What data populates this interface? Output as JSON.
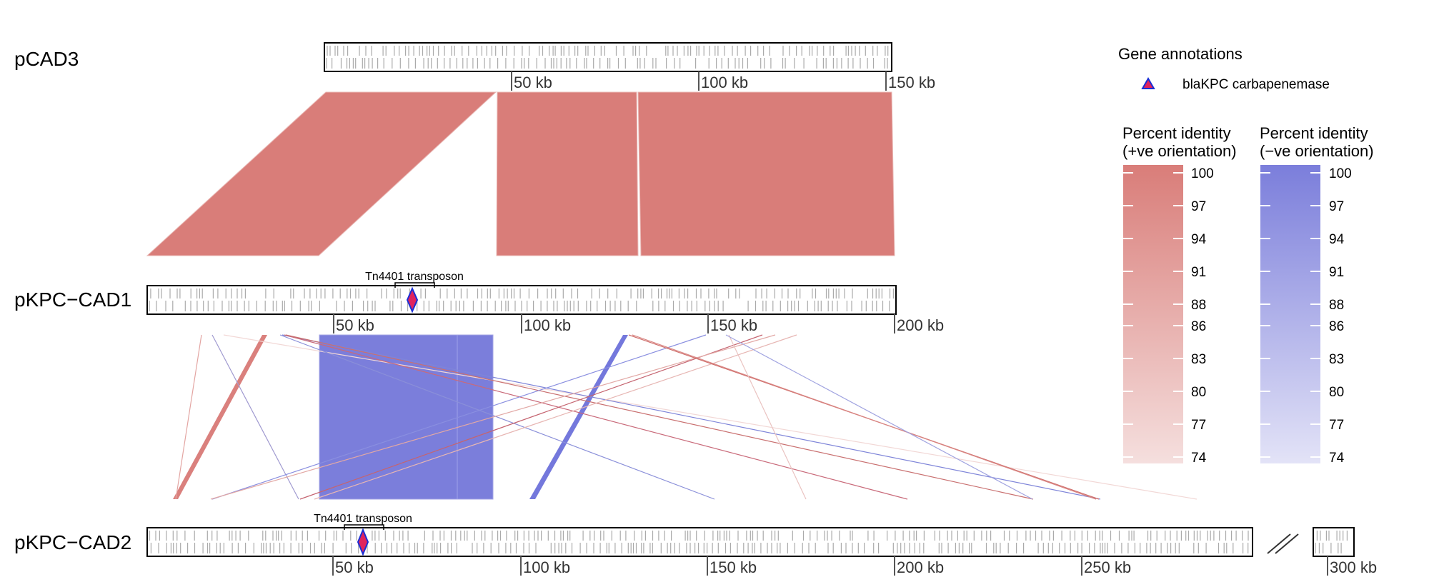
{
  "plasmids": [
    {
      "name": "pCAD3",
      "ticks": [
        "50 kb",
        "100 kb",
        "150 kb"
      ]
    },
    {
      "name": "pKPC−CAD1",
      "ticks": [
        "50 kb",
        "100 kb",
        "150 kb",
        "200 kb"
      ],
      "feature_label": "Tn4401 transposon"
    },
    {
      "name": "pKPC−CAD2",
      "ticks": [
        "50 kb",
        "100 kb",
        "150 kb",
        "200 kb",
        "250 kb",
        "300 kb"
      ],
      "feature_label": "Tn4401 transposon"
    }
  ],
  "legend": {
    "gene_title": "Gene annotations",
    "gene_item": "blaKPC carbapenemase",
    "pos_title_line1": "Percent identity",
    "pos_title_line2": "(+ve orientation)",
    "neg_title_line1": "Percent identity",
    "neg_title_line2": "(−ve orientation)",
    "identity_values": [
      "100",
      "97",
      "94",
      "91",
      "88",
      "86",
      "83",
      "80",
      "77",
      "74"
    ]
  },
  "colors": {
    "positive": "#d97d79",
    "negative": "#7b7edb",
    "gene_marker_fill": "#e0245e",
    "gene_marker_stroke": "#1a2fd6",
    "gene_tick": "#aaaaaa",
    "axis": "#555555"
  }
}
